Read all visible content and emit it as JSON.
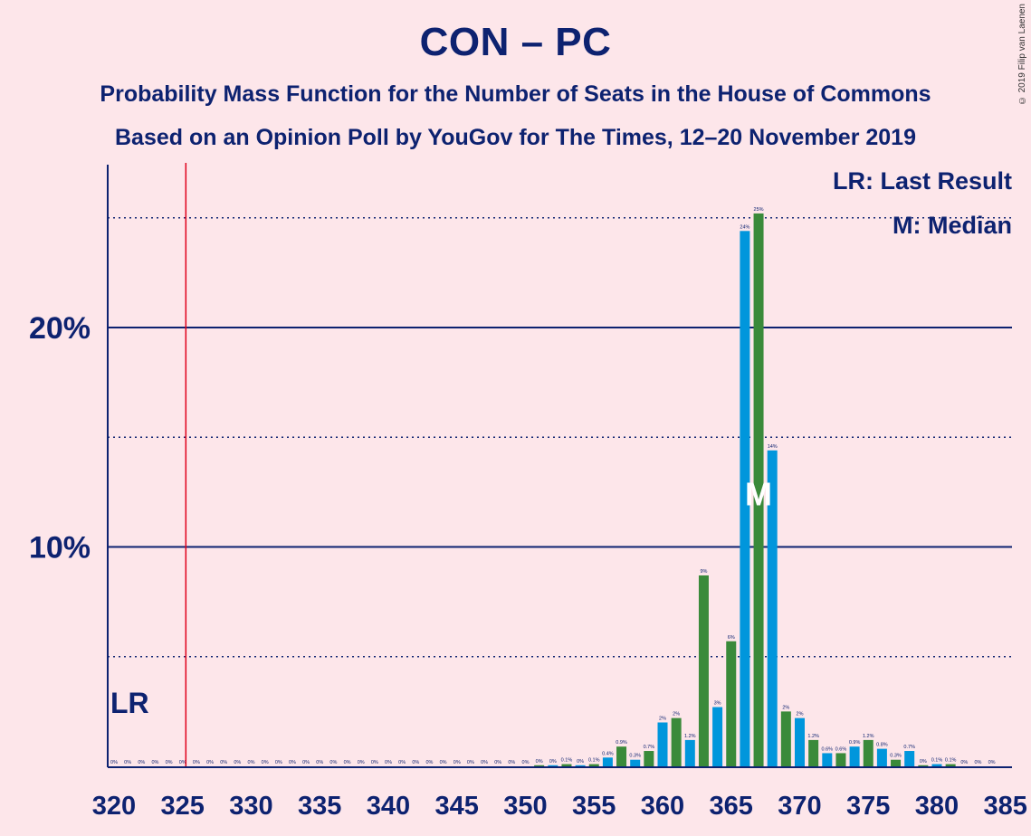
{
  "title": "CON – PC",
  "subtitle1": "Probability Mass Function for the Number of Seats in the House of Commons",
  "subtitle2": "Based on an Opinion Poll by YouGov for The Times, 12–20 November 2019",
  "copyright": "© 2019 Filip van Laenen",
  "legend": {
    "lr": "LR: Last Result",
    "median": "M: Median"
  },
  "markers": {
    "lr_label": "LR",
    "median_label": "M"
  },
  "colors": {
    "blue": "#0096dc",
    "green": "#3a8a3a",
    "navy": "#0d2270",
    "red": "#e0001a",
    "background": "#fde6ea"
  },
  "chart_data": {
    "type": "bar",
    "xlabel": "",
    "ylabel": "",
    "xlim": [
      320,
      385
    ],
    "ylim": [
      0,
      27.5
    ],
    "x_ticks": [
      320,
      325,
      330,
      335,
      340,
      345,
      350,
      355,
      360,
      365,
      370,
      375,
      380,
      385
    ],
    "y_major_ticks": [
      {
        "value": 10,
        "label": "10%"
      },
      {
        "value": 20,
        "label": "20%"
      }
    ],
    "y_minor_gridlines": [
      5,
      15,
      25
    ],
    "last_result": 325,
    "median": 367,
    "seats": [
      320,
      321,
      322,
      323,
      324,
      325,
      326,
      327,
      328,
      329,
      330,
      331,
      332,
      333,
      334,
      335,
      336,
      337,
      338,
      339,
      340,
      341,
      342,
      343,
      344,
      345,
      346,
      347,
      348,
      349,
      350,
      351,
      352,
      353,
      354,
      355,
      356,
      357,
      358,
      359,
      360,
      361,
      362,
      363,
      364,
      365,
      366,
      367,
      368,
      369,
      370,
      371,
      372,
      373,
      374,
      375,
      376,
      377,
      378,
      379,
      380,
      381,
      382,
      383,
      384
    ],
    "values": [
      0,
      0,
      0,
      0,
      0,
      0,
      0,
      0,
      0,
      0,
      0,
      0,
      0,
      0,
      0,
      0,
      0,
      0,
      0,
      0,
      0,
      0,
      0,
      0,
      0,
      0,
      0,
      0,
      0,
      0,
      0,
      0.05,
      0.05,
      0.1,
      0.05,
      0.1,
      0.4,
      0.9,
      0.3,
      0.7,
      2.0,
      2.2,
      1.2,
      8.7,
      2.7,
      5.7,
      24.4,
      25.2,
      14.4,
      2.5,
      2.2,
      1.2,
      0.6,
      0.6,
      0.9,
      1.2,
      0.8,
      0.3,
      0.7,
      0.05,
      0.1,
      0.1,
      0,
      0,
      0
    ],
    "labels": [
      "0%",
      "0%",
      "0%",
      "0%",
      "0%",
      "0%",
      "0%",
      "0%",
      "0%",
      "0%",
      "0%",
      "0%",
      "0%",
      "0%",
      "0%",
      "0%",
      "0%",
      "0%",
      "0%",
      "0%",
      "0%",
      "0%",
      "0%",
      "0%",
      "0%",
      "0%",
      "0%",
      "0%",
      "0%",
      "0%",
      "0%",
      "0%",
      "0%",
      "0.1%",
      "0%",
      "0.1%",
      "0.4%",
      "0.9%",
      "0.3%",
      "0.7%",
      "2%",
      "2%",
      "1.2%",
      "9%",
      "3%",
      "6%",
      "24%",
      "25%",
      "14%",
      "2%",
      "2%",
      "1.2%",
      "0.6%",
      "0.6%",
      "0.9%",
      "1.2%",
      "0.8%",
      "0.3%",
      "0.7%",
      "0%",
      "0.1%",
      "0.1%",
      "0%",
      "0%",
      "0%"
    ],
    "series_colors": [
      "blue",
      "green"
    ]
  }
}
